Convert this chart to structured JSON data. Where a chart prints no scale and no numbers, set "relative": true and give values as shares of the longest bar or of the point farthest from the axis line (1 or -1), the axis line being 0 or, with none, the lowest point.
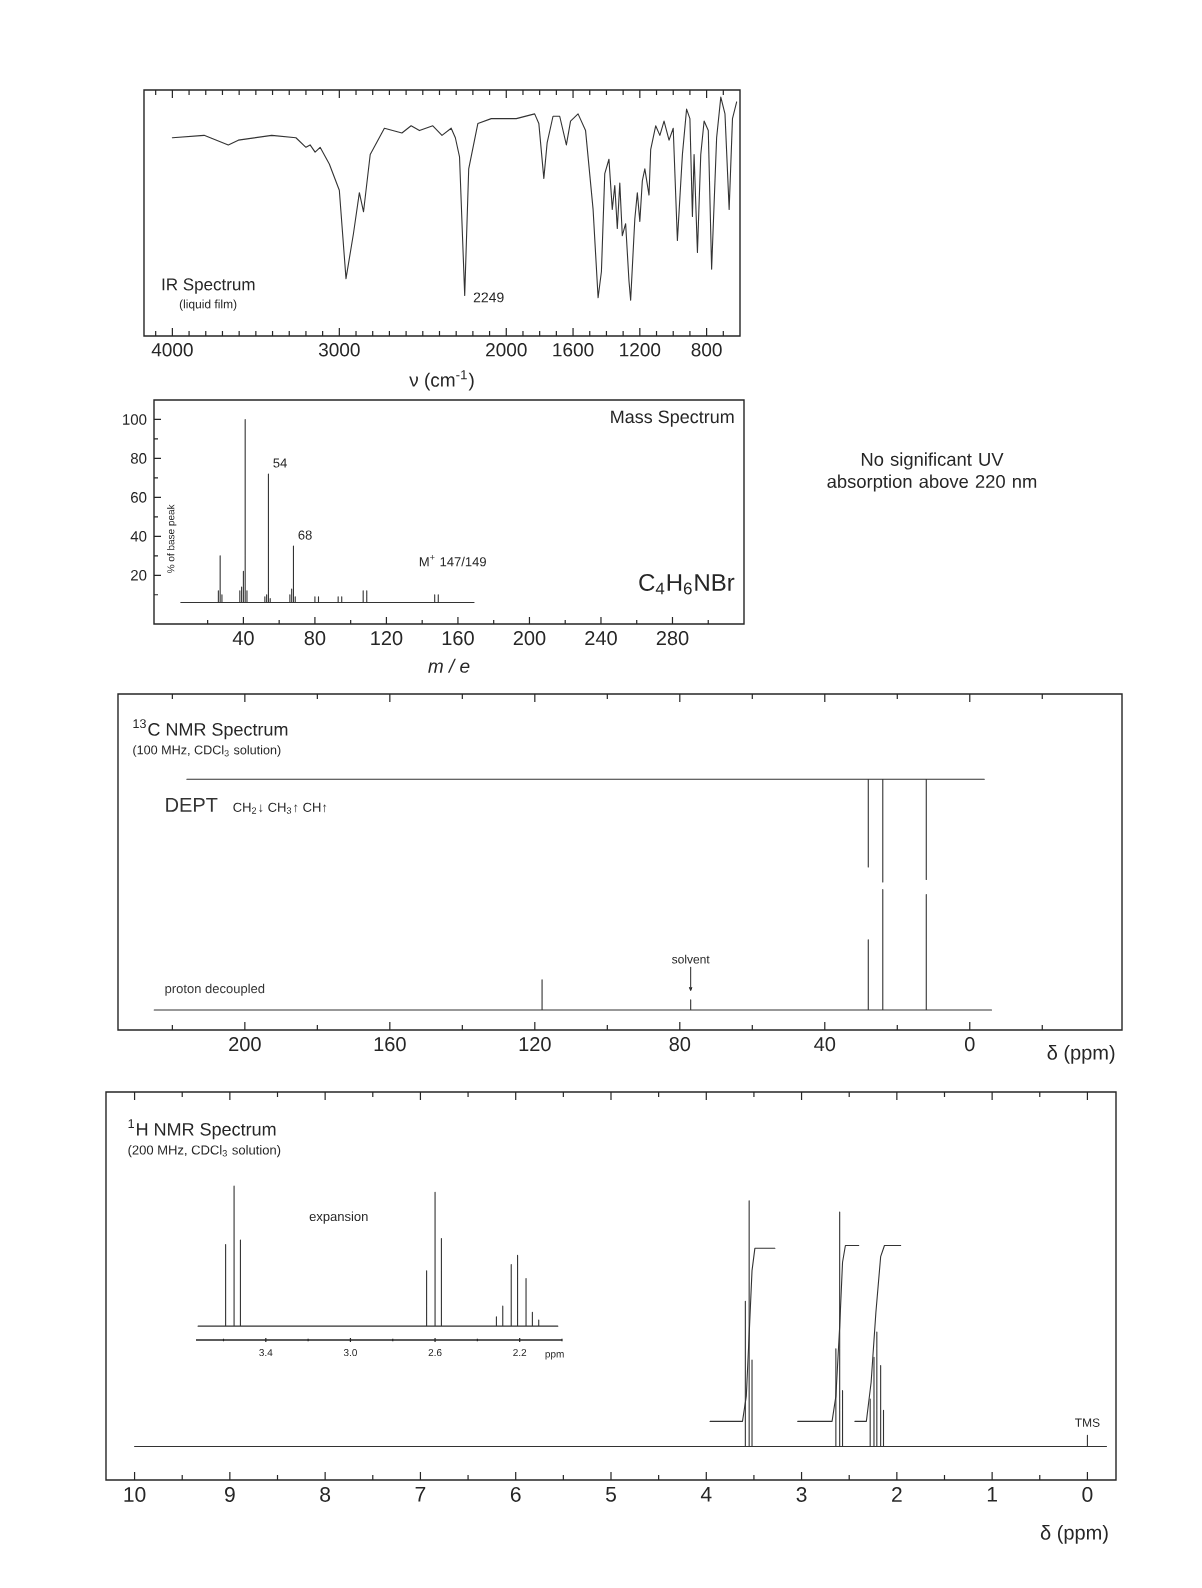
{
  "chart_data": [
    {
      "type": "line",
      "title": "IR Spectrum",
      "subtitle": "(liquid film)",
      "xlabel": "ν (cm$^{-1}$)",
      "relative": true,
      "xlim": [
        4170,
        600
      ],
      "xticks": [
        {
          "value": 4100,
          "label": null
        },
        4000,
        {
          "value": 3900,
          "label": null
        },
        {
          "value": 3800,
          "label": null
        },
        {
          "value": 3700,
          "label": null
        },
        {
          "value": 3600,
          "label": null
        },
        {
          "value": 3500,
          "label": null
        },
        {
          "value": 3400,
          "label": null
        },
        {
          "value": 3300,
          "label": null
        },
        {
          "value": 3200,
          "label": null
        },
        {
          "value": 3100,
          "label": null
        },
        3000,
        {
          "value": 2900,
          "label": null
        },
        {
          "value": 2800,
          "label": null
        },
        {
          "value": 2700,
          "label": null
        },
        {
          "value": 2600,
          "label": null
        },
        {
          "value": 2500,
          "label": null
        },
        {
          "value": 2400,
          "label": null
        },
        {
          "value": 2300,
          "label": null
        },
        {
          "value": 2200,
          "label": null
        },
        {
          "value": 2100,
          "label": null
        },
        2000,
        {
          "value": 1900,
          "label": null
        },
        {
          "value": 1800,
          "label": null
        },
        {
          "value": 1700,
          "label": null
        },
        1600,
        {
          "value": 1500,
          "label": null
        },
        {
          "value": 1400,
          "label": null
        },
        {
          "value": 1300,
          "label": null
        },
        1200,
        {
          "value": 1100,
          "label": null
        },
        {
          "value": 1000,
          "label": null
        },
        {
          "value": 900,
          "label": null
        },
        800,
        {
          "value": 700,
          "label": null
        }
      ],
      "series": [
        {
          "color": "#333333",
          "x": [
            4000,
            3810,
            3665,
            3605,
            3405,
            3260,
            3200,
            3175,
            3145,
            3115,
            3060,
            3000,
            2960,
            2915,
            2880,
            2855,
            2815,
            2730,
            2625,
            2570,
            2520,
            2440,
            2385,
            2330,
            2305,
            2280,
            2249,
            2225,
            2170,
            2090,
            1940,
            1830,
            1805,
            1775,
            1755,
            1720,
            1680,
            1640,
            1615,
            1570,
            1525,
            1480,
            1450,
            1430,
            1410,
            1385,
            1365,
            1350,
            1335,
            1320,
            1305,
            1285,
            1265,
            1255,
            1230,
            1215,
            1200,
            1185,
            1170,
            1145,
            1135,
            1105,
            1080,
            1055,
            1025,
            1000,
            975,
            945,
            920,
            900,
            885,
            875,
            855,
            835,
            815,
            790,
            770,
            740,
            715,
            690,
            665,
            645,
            620
          ],
          "values": [
            0.83,
            0.84,
            0.8,
            0.82,
            0.84,
            0.83,
            0.79,
            0.8,
            0.77,
            0.79,
            0.72,
            0.61,
            0.24,
            0.43,
            0.6,
            0.52,
            0.76,
            0.87,
            0.85,
            0.88,
            0.86,
            0.88,
            0.84,
            0.87,
            0.83,
            0.75,
            0.17,
            0.7,
            0.89,
            0.91,
            0.91,
            0.93,
            0.89,
            0.66,
            0.81,
            0.92,
            0.92,
            0.8,
            0.9,
            0.93,
            0.86,
            0.53,
            0.16,
            0.27,
            0.68,
            0.74,
            0.53,
            0.63,
            0.45,
            0.64,
            0.42,
            0.47,
            0.23,
            0.15,
            0.49,
            0.6,
            0.48,
            0.65,
            0.7,
            0.59,
            0.78,
            0.88,
            0.84,
            0.9,
            0.82,
            0.87,
            0.4,
            0.76,
            0.95,
            0.91,
            0.5,
            0.76,
            0.35,
            0.76,
            0.9,
            0.86,
            0.28,
            0.83,
            1.0,
            0.93,
            0.53,
            0.91,
            0.98
          ]
        }
      ],
      "annotations": [
        {
          "text": "2249",
          "x": 2249,
          "y": 0.17
        }
      ]
    },
    {
      "type": "line",
      "title": "Mass Spectrum",
      "xlabel": "m / e",
      "ylabel": "% of base peak",
      "xlim": [
        -10,
        320
      ],
      "ylim": [
        -5,
        110
      ],
      "xticks": [
        {
          "value": 20,
          "label": null
        },
        40,
        {
          "value": 60,
          "label": null
        },
        80,
        {
          "value": 100,
          "label": null
        },
        120,
        {
          "value": 140,
          "label": null
        },
        160,
        {
          "value": 180,
          "label": null
        },
        200,
        {
          "value": 220,
          "label": null
        },
        240,
        {
          "value": 260,
          "label": null
        },
        280,
        {
          "value": 300,
          "label": null
        }
      ],
      "yticks": [
        {
          "value": 10,
          "label": null
        },
        20,
        {
          "value": 30,
          "label": null
        },
        40,
        {
          "value": 50,
          "label": null
        },
        60,
        {
          "value": 70,
          "label": null
        },
        80,
        {
          "value": 90,
          "label": null
        },
        100
      ],
      "series": [
        {
          "color": "#333333",
          "x": [
            5,
            26,
            26,
            26,
            27,
            27,
            27,
            28,
            28,
            28,
            38,
            38,
            38,
            39,
            39,
            39,
            40,
            40,
            40,
            41,
            41,
            41,
            42,
            42,
            42,
            52,
            52,
            52,
            53,
            53,
            53,
            54,
            54,
            54,
            55,
            55,
            55,
            66,
            66,
            66,
            67,
            67,
            67,
            68,
            68,
            68,
            69,
            69,
            69,
            80,
            80,
            80,
            82,
            82,
            82,
            93,
            93,
            93,
            95,
            95,
            95,
            107,
            107,
            107,
            109,
            109,
            109,
            147,
            147,
            147,
            149,
            149,
            149,
            169
          ],
          "values": [
            6,
            6,
            12,
            6,
            6,
            30,
            6,
            6,
            10,
            6,
            6,
            12,
            6,
            6,
            14,
            6,
            6,
            22,
            6,
            6,
            100,
            6,
            6,
            12,
            6,
            6,
            9,
            6,
            6,
            10,
            6,
            6,
            72,
            6,
            6,
            8,
            6,
            6,
            10,
            6,
            6,
            13,
            6,
            6,
            35,
            6,
            6,
            9,
            6,
            6,
            9,
            6,
            6,
            9,
            6,
            6,
            9,
            6,
            6,
            9,
            6,
            6,
            12,
            6,
            6,
            12,
            6,
            6,
            10,
            6,
            6,
            10,
            6,
            6
          ]
        }
      ],
      "annotations": [
        {
          "text": "54",
          "x": 54,
          "y": 72
        },
        {
          "text": "68",
          "x": 68,
          "y": 35
        },
        {
          "text": "M$^{+}$ 147/149",
          "x": 147,
          "y": 10
        },
        "C$_{4}$H$_{6}$NBr"
      ]
    },
    {
      "type": "other",
      "annotations": [
        "No significant UV absorption above 220 nm"
      ]
    },
    {
      "type": "line",
      "title": "$^{13}$C NMR Spectrum",
      "subtitle": "(100 MHz, CDCl$_{3}$ solution)",
      "xlabel": "δ (ppm)",
      "relative": true,
      "xlim": [
        235,
        -42
      ],
      "xticks": [
        {
          "value": 220,
          "label": null
        },
        200,
        {
          "value": 180,
          "label": null
        },
        160,
        {
          "value": 140,
          "label": null
        },
        120,
        {
          "value": 100,
          "label": null
        },
        80,
        {
          "value": 60,
          "label": null
        },
        40,
        {
          "value": 20,
          "label": null
        },
        0,
        {
          "value": -20,
          "label": null
        }
      ],
      "series": [
        {
          "name": "DEPT",
          "color": "#333333",
          "x": [
            216,
            28,
            28,
            28,
            24,
            24,
            24,
            12,
            12,
            12,
            -4
          ],
          "values": [
            1,
            1,
            0.65,
            1,
            1,
            0.59,
            1,
            1,
            0.6,
            1,
            1
          ]
        },
        {
          "name": "proton decoupled",
          "color": "#333333",
          "x": [
            225,
            118,
            118,
            118,
            77,
            77,
            77,
            28,
            28,
            28,
            24,
            24,
            24,
            12,
            12,
            12,
            -6
          ],
          "values": [
            0.08,
            0.08,
            0.2,
            0.08,
            0.08,
            0.12,
            0.08,
            0.08,
            0.36,
            0.08,
            0.08,
            0.56,
            0.08,
            0.08,
            0.54,
            0.08,
            0.08
          ]
        }
      ],
      "annotations": [
        "CH$_{2}$↓ CH$_{3}$↑ CH↑",
        {
          "text": "solvent",
          "x": 77,
          "y": 0.12
        }
      ]
    },
    {
      "type": "line",
      "title": "$^{1}$H NMR Spectrum",
      "subtitle": "(200 MHz, CDCl$_{3}$ solution)",
      "xlabel": "δ (ppm)",
      "relative": true,
      "xlim": [
        10.3,
        -0.3
      ],
      "xticks": [
        10,
        {
          "value": 9.5,
          "label": null
        },
        9,
        {
          "value": 8.5,
          "label": null
        },
        8,
        {
          "value": 7.5,
          "label": null
        },
        7,
        {
          "value": 6.5,
          "label": null
        },
        6,
        {
          "value": 5.5,
          "label": null
        },
        5,
        {
          "value": 4.5,
          "label": null
        },
        4,
        {
          "value": 3.5,
          "label": null
        },
        3,
        {
          "value": 2.5,
          "label": null
        },
        2,
        {
          "value": 1.5,
          "label": null
        },
        1,
        {
          "value": 0.5,
          "label": null
        },
        0
      ],
      "series": [
        {
          "color": "#333333",
          "x": [
            10,
            3.59,
            3.59,
            3.59,
            3.55,
            3.55,
            3.55,
            3.52,
            3.52,
            3.52,
            2.64,
            2.64,
            2.64,
            2.6,
            2.6,
            2.6,
            2.57,
            2.57,
            2.57,
            2.28,
            2.28,
            2.28,
            2.24,
            2.24,
            2.24,
            2.21,
            2.21,
            2.21,
            2.17,
            2.17,
            2.17,
            2.14,
            2.14,
            2.14,
            0,
            0,
            0,
            -0.2
          ],
          "values": [
            0.12,
            0.12,
            0.64,
            0.12,
            0.12,
            1,
            0.12,
            0.12,
            0.43,
            0.12,
            0.12,
            0.47,
            0.12,
            0.12,
            0.96,
            0.12,
            0.12,
            0.32,
            0.12,
            0.12,
            0.29,
            0.12,
            0.12,
            0.44,
            0.12,
            0.12,
            0.53,
            0.12,
            0.12,
            0.41,
            0.12,
            0.12,
            0.25,
            0.12,
            0.12,
            0.16,
            0.12,
            0.12
          ]
        },
        {
          "color": "#333333",
          "x": [
            3.96,
            3.62,
            3.58,
            3.55,
            3.52,
            3.49,
            3.28,
            3.2,
            3.04,
            2.68,
            2.64,
            2.6,
            2.57,
            2.54,
            2.4,
            2.42,
            2.44,
            2.32,
            2.27,
            2.22,
            2.17,
            2.13,
            1.96
          ],
          "values": [
            0.21,
            0.21,
            0.3,
            0.52,
            0.75,
            0.83,
            0.83,
            null,
            0.21,
            0.21,
            0.3,
            0.55,
            0.78,
            0.84,
            0.84,
            null,
            0.21,
            0.21,
            0.35,
            0.6,
            0.8,
            0.84,
            0.84
          ]
        }
      ],
      "annotations": [
        {
          "text": "TMS",
          "x": 0,
          "y": 0.16
        }
      ]
    },
    {
      "type": "line",
      "title": "expansion",
      "xlabel": "ppm",
      "relative": true,
      "xlim": [
        3.73,
        2.0
      ],
      "xticks": [
        {
          "value": 3.6,
          "label": null
        },
        3.4,
        {
          "value": 3.2,
          "label": null
        },
        {
          "value": 3,
          "label": "3.0"
        },
        {
          "value": 2.8,
          "label": null
        },
        2.6,
        {
          "value": 2.4,
          "label": null
        },
        2.2,
        {
          "value": 2.0,
          "label": null
        }
      ],
      "series": [
        {
          "color": "#333333",
          "x": [
            3.72,
            3.59,
            3.59,
            3.59,
            3.55,
            3.55,
            3.55,
            3.52,
            3.52,
            3.52,
            2.64,
            2.64,
            2.64,
            2.6,
            2.6,
            2.6,
            2.57,
            2.57,
            2.57,
            2.31,
            2.31,
            2.31,
            2.28,
            2.28,
            2.28,
            2.24,
            2.24,
            2.24,
            2.21,
            2.21,
            2.21,
            2.17,
            2.17,
            2.17,
            2.14,
            2.14,
            2.14,
            2.11,
            2.11,
            2.11,
            2.02
          ],
          "values": [
            0.09,
            0.09,
            0.62,
            0.09,
            0.09,
            1,
            0.09,
            0.09,
            0.65,
            0.09,
            0.09,
            0.45,
            0.09,
            0.09,
            0.96,
            0.09,
            0.09,
            0.66,
            0.09,
            0.09,
            0.15,
            0.09,
            0.09,
            0.22,
            0.09,
            0.09,
            0.49,
            0.09,
            0.09,
            0.55,
            0.09,
            0.09,
            0.4,
            0.09,
            0.09,
            0.18,
            0.09,
            0.09,
            0.13,
            0.09,
            0.09
          ]
        }
      ]
    }
  ]
}
